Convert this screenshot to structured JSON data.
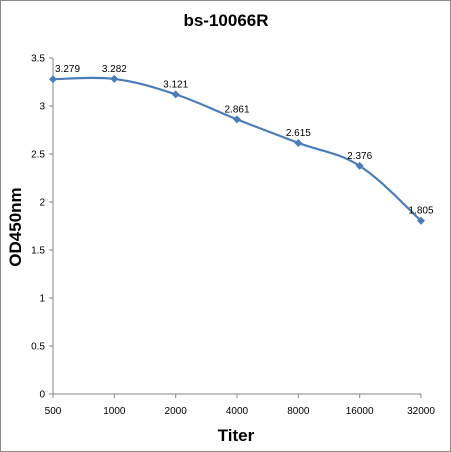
{
  "chart_data": {
    "type": "line",
    "title": "bs-10066R",
    "xlabel": "Titer",
    "ylabel": "OD450nm",
    "categories": [
      "500",
      "1000",
      "2000",
      "4000",
      "8000",
      "16000",
      "32000"
    ],
    "series": [
      {
        "values": [
          3.279,
          3.282,
          3.121,
          2.861,
          2.615,
          2.376,
          1.805
        ]
      }
    ],
    "data_labels": [
      "3.279",
      "3.282",
      "3.121",
      "2.861",
      "2.615",
      "2.376",
      "1.805"
    ],
    "ylim": [
      0,
      3.5
    ],
    "yticks": [
      "0",
      "0.5",
      "1",
      "1.5",
      "2",
      "2.5",
      "3",
      "3.5"
    ],
    "grid": false,
    "line_color": "#4a7ebb",
    "marker": "diamond",
    "smooth": true
  }
}
